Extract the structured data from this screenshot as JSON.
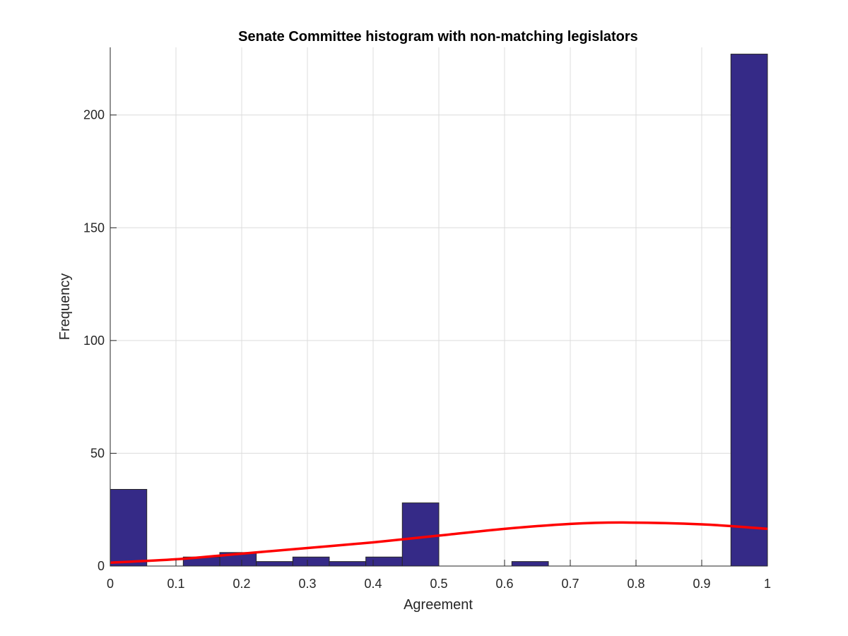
{
  "chart_data": {
    "type": "bar",
    "title": "Senate Committee histogram with non-matching legislators",
    "xlabel": "Agreement",
    "ylabel": "Frequency",
    "xlim": [
      0,
      1
    ],
    "ylim": [
      0,
      230
    ],
    "xticks": [
      0,
      0.1,
      0.2,
      0.3,
      0.4,
      0.5,
      0.6,
      0.7,
      0.8,
      0.9,
      1
    ],
    "xtick_labels": [
      "0",
      "0.1",
      "0.2",
      "0.3",
      "0.4",
      "0.5",
      "0.6",
      "0.7",
      "0.8",
      "0.9",
      "1"
    ],
    "yticks": [
      0,
      50,
      100,
      150,
      200
    ],
    "ytick_labels": [
      "0",
      "50",
      "100",
      "150",
      "200"
    ],
    "grid": true,
    "bar_color": "#352a87",
    "bin_edges": [
      0,
      0.0556,
      0.1111,
      0.1667,
      0.2222,
      0.2778,
      0.3333,
      0.3889,
      0.4444,
      0.5,
      0.5556,
      0.6111,
      0.6667,
      0.7222,
      0.7778,
      0.8333,
      0.8889,
      0.9444,
      1
    ],
    "counts": [
      34,
      0,
      4,
      6,
      2,
      4,
      2,
      4,
      28,
      0,
      0,
      2,
      0,
      0,
      0,
      0,
      0,
      227
    ],
    "fit_curve": {
      "color": "#ff0000",
      "x": [
        0,
        0.1,
        0.2,
        0.3,
        0.4,
        0.5,
        0.6,
        0.7,
        0.78,
        0.9,
        1
      ],
      "y": [
        1.5,
        3,
        5.5,
        8,
        10.5,
        13.5,
        16.5,
        18.7,
        19.3,
        18.5,
        16.5
      ]
    }
  }
}
